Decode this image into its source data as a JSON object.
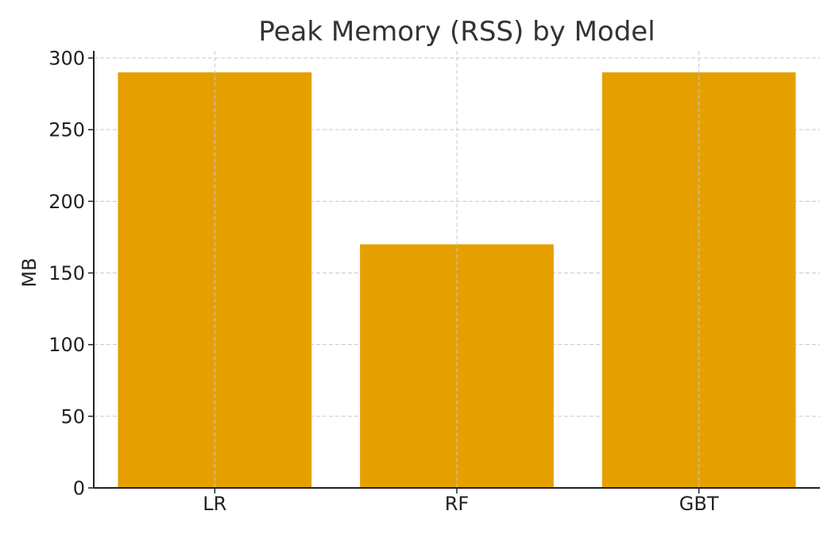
{
  "chart_data": {
    "type": "bar",
    "title": "Peak Memory (RSS) by Model",
    "xlabel": "",
    "ylabel": "MB",
    "categories": [
      "LR",
      "RF",
      "GBT"
    ],
    "values": [
      290,
      170,
      290
    ],
    "ylim": [
      0,
      305
    ],
    "yticks": [
      0,
      50,
      100,
      150,
      200,
      250,
      300
    ],
    "grid": true,
    "bar_color": "#E5A000",
    "legend": "none"
  }
}
